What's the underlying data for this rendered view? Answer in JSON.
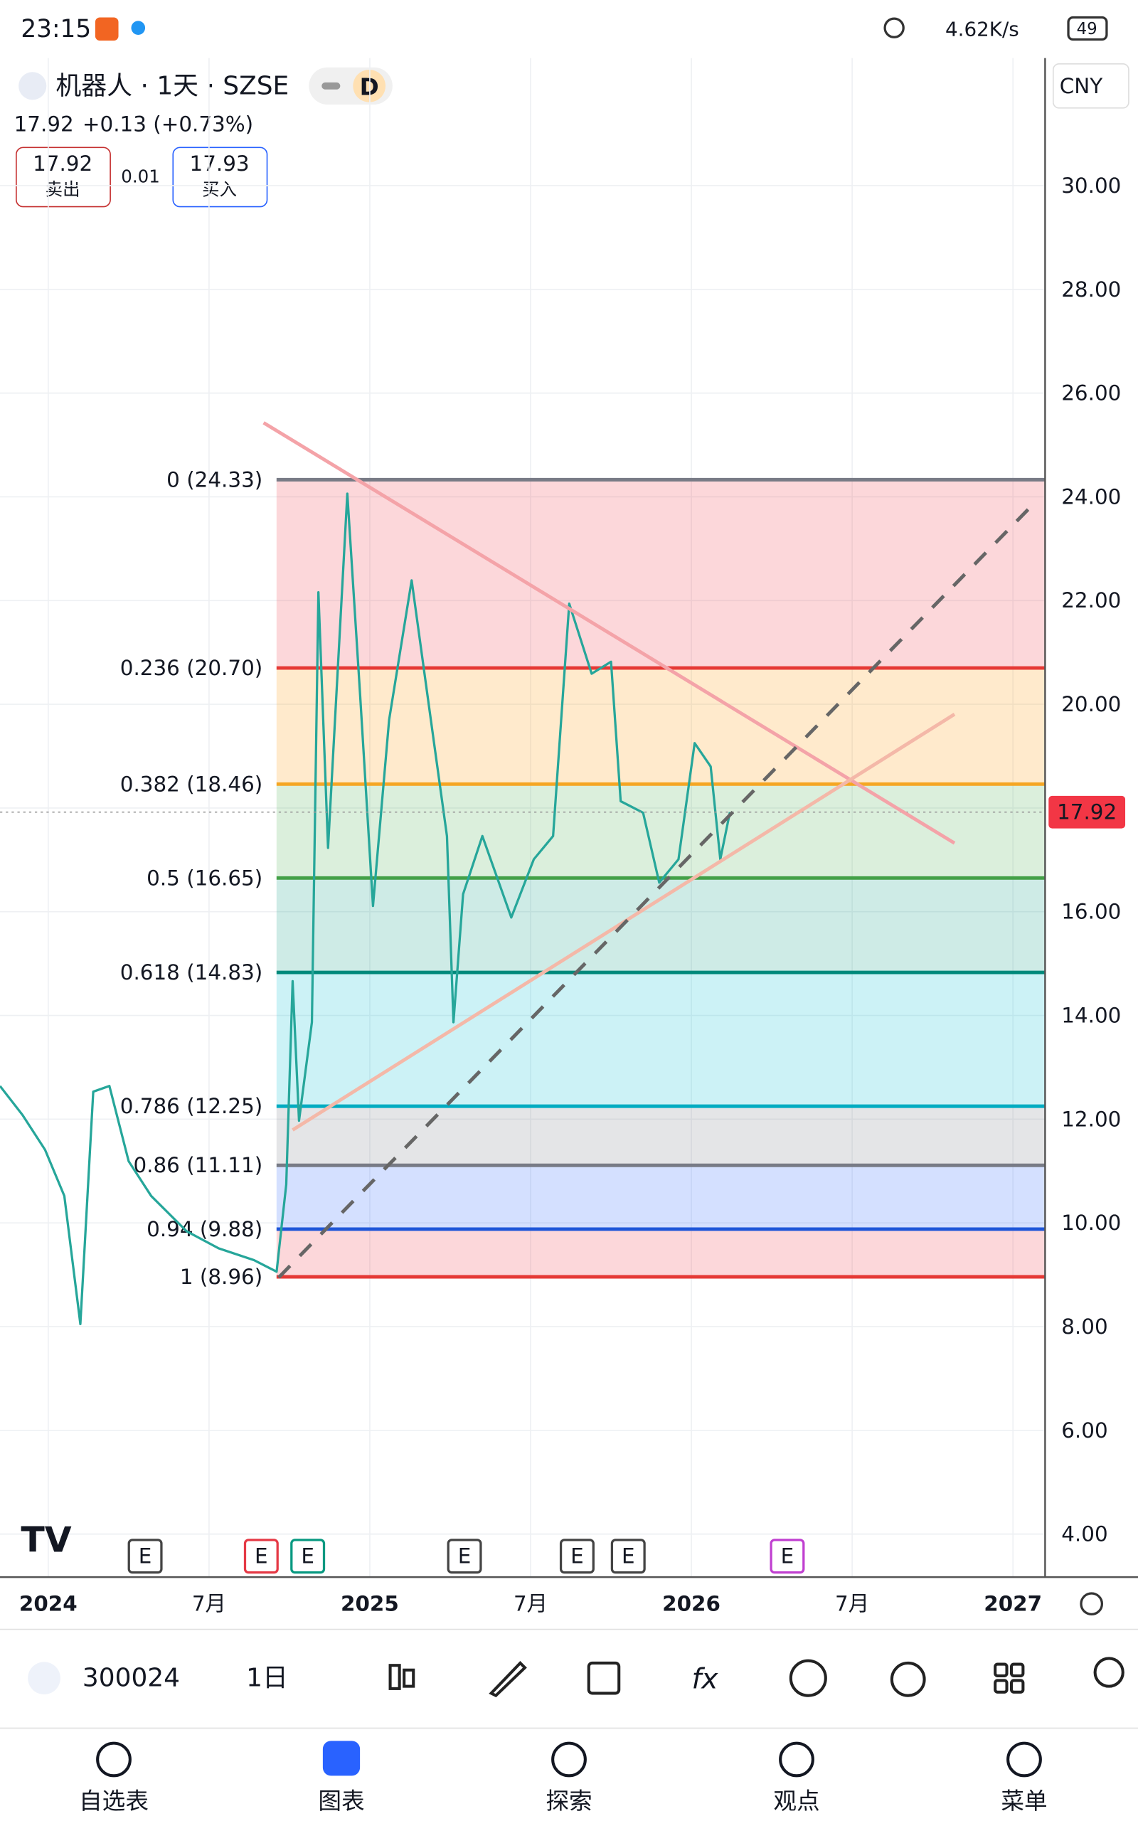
{
  "status_bar": {
    "time": "23:15",
    "speed": "4.62K/s",
    "battery": "49"
  },
  "header": {
    "symbol": "机器人 · 1天 · SZSE",
    "interval_badge": "D",
    "currency": "CNY",
    "price": "17.92",
    "change": "+0.13 (+0.73%)",
    "sell_price": "17.92",
    "sell_label": "卖出",
    "spread": "0.01",
    "buy_price": "17.93",
    "buy_label": "买入"
  },
  "chart_data": {
    "type": "line",
    "color": "#26a69a",
    "x": [
      2023.85,
      2023.92,
      2023.99,
      2024.05,
      2024.1,
      2024.14,
      2024.19,
      2024.25,
      2024.32,
      2024.43,
      2024.53,
      2024.64,
      2024.71,
      2024.74,
      2024.76,
      2024.78,
      2024.82,
      2024.84,
      2024.87,
      2024.93,
      2024.97,
      2025.01,
      2025.06,
      2025.13,
      2025.2,
      2025.24,
      2025.26,
      2025.29,
      2025.35,
      2025.44,
      2025.51,
      2025.57,
      2025.62,
      2025.69,
      2025.75,
      2025.78,
      2025.85,
      2025.9,
      2025.96,
      2026.01,
      2026.06,
      2026.09,
      2026.12
    ],
    "values": [
      12.64,
      12.08,
      11.41,
      10.52,
      8.05,
      12.53,
      12.64,
      11.19,
      10.52,
      9.84,
      9.51,
      9.28,
      9.06,
      10.74,
      14.66,
      11.97,
      13.87,
      22.16,
      17.23,
      24.06,
      20.15,
      16.11,
      19.7,
      22.39,
      19.25,
      17.46,
      13.87,
      16.34,
      17.46,
      15.89,
      17.01,
      17.46,
      21.94,
      20.59,
      20.82,
      18.13,
      17.91,
      16.56,
      17.01,
      19.25,
      18.8,
      17.01,
      17.92
    ],
    "xlim": [
      2023.85,
      2027.1
    ],
    "xticks": [
      2024,
      {
        "value": 2024.5,
        "label": "7月"
      },
      2025,
      {
        "value": 2025.5,
        "label": "7月"
      },
      2026,
      {
        "value": 2026.5,
        "label": "7月"
      },
      2027
    ],
    "ylim": [
      3.17,
      32.46
    ],
    "yticks": [
      {
        "value": 4,
        "label": "4.00"
      },
      {
        "value": 6,
        "label": "6.00"
      },
      {
        "value": 8,
        "label": "8.00"
      },
      {
        "value": 10,
        "label": "10.00"
      },
      {
        "value": 12,
        "label": "12.00"
      },
      {
        "value": 14,
        "label": "14.00"
      },
      {
        "value": 16,
        "label": "16.00"
      },
      {
        "value": 18,
        "label": "18.00"
      },
      {
        "value": 20,
        "label": "20.00"
      },
      {
        "value": 22,
        "label": "22.00"
      },
      {
        "value": 24,
        "label": "24.00"
      },
      {
        "value": 26,
        "label": "26.00"
      },
      {
        "value": 28,
        "label": "28.00"
      },
      {
        "value": 30,
        "label": "30.00"
      }
    ],
    "grid": true,
    "last_price": 17.92,
    "last_price_color": "#f23645",
    "fib_start": 2024.71,
    "fib_levels": [
      {
        "label": "0 (24.33)",
        "value": 24.33,
        "color": "#787b86",
        "fill": "rgba(242,54,69,0.2)"
      },
      {
        "label": "0.236 (20.70)",
        "value": 20.7,
        "color": "#e53935",
        "fill": "rgba(255,152,0,0.2)"
      },
      {
        "label": "0.382 (18.46)",
        "value": 18.46,
        "color": "#f5a623",
        "fill": "rgba(76,175,80,0.2)"
      },
      {
        "label": "0.5 (16.65)",
        "value": 16.65,
        "color": "#43a047",
        "fill": "rgba(8,153,129,0.2)"
      },
      {
        "label": "0.618 (14.83)",
        "value": 14.83,
        "color": "#00897b",
        "fill": "rgba(0,188,212,0.2)"
      },
      {
        "label": "0.786 (12.25)",
        "value": 12.25,
        "color": "#00acc1",
        "fill": "rgba(120,123,134,0.2)"
      },
      {
        "label": "0.86 (11.11)",
        "value": 11.11,
        "color": "#787b86",
        "fill": "rgba(41,98,255,0.2)"
      },
      {
        "label": "0.94 (9.88)",
        "value": 9.88,
        "color": "#1e56d8",
        "fill": "rgba(242,54,69,0.2)"
      },
      {
        "label": "1 (8.96)",
        "value": 8.96,
        "color": "#e53935"
      }
    ],
    "earnings_markers": [
      {
        "label": "E",
        "color": "#444"
      },
      {
        "label": "E",
        "color": "#e53945"
      },
      {
        "label": "E",
        "color": "#089981"
      },
      {
        "label": "E",
        "color": "#444"
      },
      {
        "label": "E",
        "color": "#444"
      },
      {
        "label": "E",
        "color": "#444"
      },
      {
        "label": "E",
        "color": "#c040d0"
      }
    ]
  },
  "toolbar": {
    "symbol": "300024",
    "interval": "1日"
  },
  "nav": [
    "自选表",
    "图表",
    "探索",
    "观点",
    "菜单"
  ]
}
